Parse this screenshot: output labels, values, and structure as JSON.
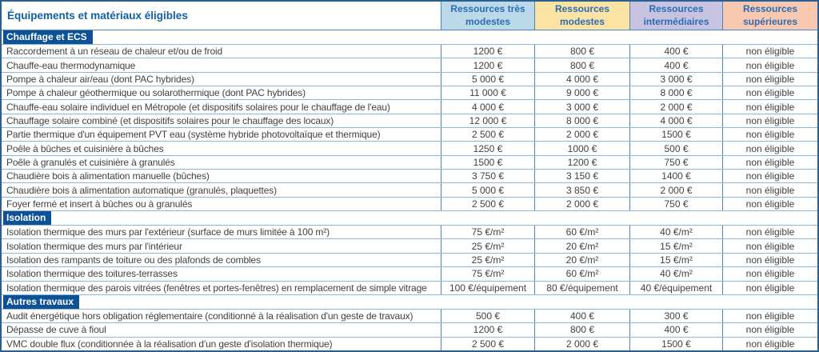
{
  "header": {
    "title": "Équipements et matériaux éligibles",
    "columns": [
      {
        "label": "Ressources très modestes",
        "bg": "#bcd9ea"
      },
      {
        "label": "Ressources modestes",
        "bg": "#fbe3a4"
      },
      {
        "label": "Ressources intermédiaires",
        "bg": "#c7c3e1"
      },
      {
        "label": "Ressources supérieures",
        "bg": "#f8c9b0"
      }
    ]
  },
  "colors": {
    "section_badge_bg": "#0d5296",
    "title_text": "#0f62a8",
    "border_outer": "#2c5e8e",
    "border_vertical": "#4d84bb",
    "border_horizontal": "#8fb4d6"
  },
  "sections": [
    {
      "name": "Chauffage et ECS",
      "rows": [
        {
          "label": "Raccordement à un réseau de chaleur et/ou de froid",
          "values": [
            "1200 €",
            "800 €",
            "400 €",
            "non éligible"
          ]
        },
        {
          "label": "Chauffe-eau thermodynamique",
          "values": [
            "1200 €",
            "800 €",
            "400 €",
            "non éligible"
          ]
        },
        {
          "label": "Pompe à chaleur air/eau (dont PAC hybrides)",
          "values": [
            "5 000 €",
            "4 000 €",
            "3 000 €",
            "non éligible"
          ]
        },
        {
          "label": "Pompe à chaleur géothermique ou solarothermique (dont PAC hybrides)",
          "values": [
            "11 000 €",
            "9 000 €",
            "8 000 €",
            "non éligible"
          ]
        },
        {
          "label": "Chauffe-eau solaire individuel en Métropole (et dispositifs solaires pour le chauffage de l'eau)",
          "values": [
            "4 000 €",
            "3 000 €",
            "2 000 €",
            "non éligible"
          ]
        },
        {
          "label": "Chauffage solaire combiné (et dispositifs solaires pour le chauffage des locaux)",
          "values": [
            "12 000 €",
            "8 000 €",
            "4 000 €",
            "non éligible"
          ]
        },
        {
          "label": "Partie thermique d'un équipement PVT eau (système hybride photovoltaïque et thermique)",
          "values": [
            "2 500 €",
            "2 000 €",
            "1500 €",
            "non éligible"
          ]
        },
        {
          "label": "Poêle à bûches et cuisinière à bûches",
          "values": [
            "1250 €",
            "1000 €",
            "500 €",
            "non éligible"
          ]
        },
        {
          "label": "Poêle à granulés et cuisinière à granulés",
          "values": [
            "1500 €",
            "1200 €",
            "750 €",
            "non éligible"
          ]
        },
        {
          "label": "Chaudière bois à alimentation manuelle (bûches)",
          "values": [
            "3 750 €",
            "3 150 €",
            "1400 €",
            "non éligible"
          ]
        },
        {
          "label": "Chaudière bois à alimentation automatique (granulés, plaquettes)",
          "values": [
            "5 000 €",
            "3 850 €",
            "2 000 €",
            "non éligible"
          ]
        },
        {
          "label": "Foyer fermé et insert à bûches ou à granulés",
          "values": [
            "2 500 €",
            "2 000 €",
            "750 €",
            "non éligible"
          ]
        }
      ]
    },
    {
      "name": "Isolation",
      "rows": [
        {
          "label": "Isolation thermique des murs par l'extérieur (surface de murs limitée à 100 m²)",
          "values": [
            "75 €/m²",
            "60 €/m²",
            "40 €/m²",
            "non éligible"
          ]
        },
        {
          "label": "Isolation thermique des murs par l'intérieur",
          "values": [
            "25 €/m²",
            "20 €/m²",
            "15 €/m²",
            "non éligible"
          ]
        },
        {
          "label": "Isolation des rampants de toiture ou des plafonds de combles",
          "values": [
            "25 €/m²",
            "20 €/m²",
            "15 €/m²",
            "non éligible"
          ]
        },
        {
          "label": "Isolation thermique des toitures-terrasses",
          "values": [
            "75 €/m²",
            "60 €/m²",
            "40 €/m²",
            "non éligible"
          ]
        },
        {
          "label": "Isolation thermique des parois vitrées (fenêtres et portes-fenêtres) en remplacement de simple vitrage",
          "values": [
            "100 €/équipement",
            "80 €/équipement",
            "40 €/équipement",
            "non éligible"
          ]
        }
      ]
    },
    {
      "name": "Autres travaux",
      "rows": [
        {
          "label": "Audit énergétique hors obligation réglementaire (conditionné à la réalisation d'un geste de travaux)",
          "values": [
            "500 €",
            "400 €",
            "300 €",
            "non éligible"
          ]
        },
        {
          "label": "Dépasse de cuve à fioul",
          "values": [
            "1200 €",
            "800 €",
            "400 €",
            "non éligible"
          ]
        },
        {
          "label": "VMC double flux (conditionnée à la réalisation d'un geste d'isolation thermique)",
          "values": [
            "2 500 €",
            "2 000 €",
            "1500 €",
            "non éligible"
          ]
        }
      ]
    }
  ]
}
